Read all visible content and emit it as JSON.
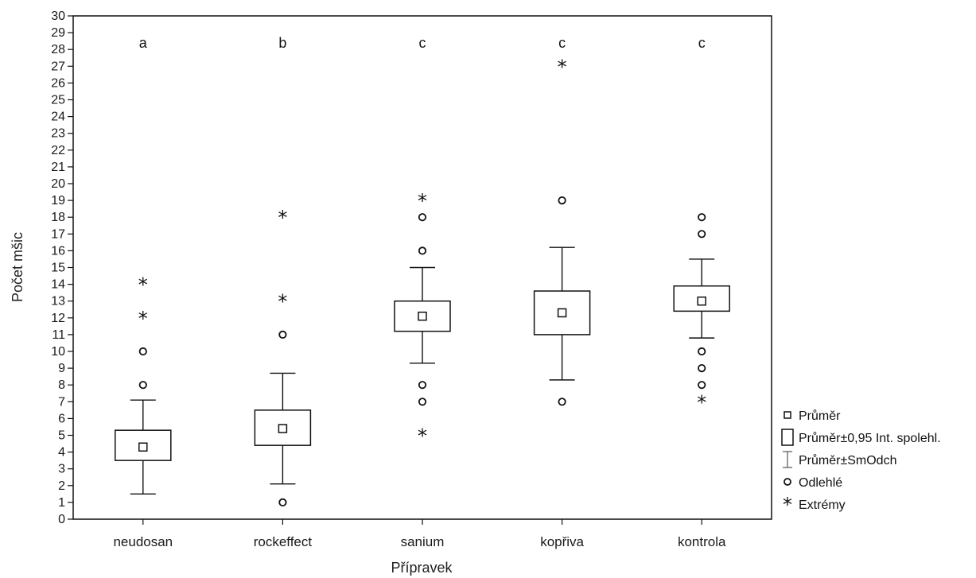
{
  "chart_data": {
    "type": "box",
    "title": "",
    "xlabel": "Přípravek",
    "ylabel": "Počet mšic",
    "ylim": [
      0,
      30
    ],
    "yticks": [
      0,
      1,
      2,
      3,
      4,
      5,
      6,
      7,
      8,
      9,
      10,
      11,
      12,
      13,
      14,
      15,
      16,
      17,
      18,
      19,
      20,
      21,
      22,
      23,
      24,
      25,
      26,
      27,
      28,
      29,
      30
    ],
    "grid": false,
    "legend_position": "right",
    "legend": [
      {
        "key": "mean",
        "label": "Průměr"
      },
      {
        "key": "ci",
        "label": "Průměr±0,95 Int. spolehl."
      },
      {
        "key": "sd",
        "label": "Průměr±SmOdch"
      },
      {
        "key": "outlier",
        "label": "Odlehlé"
      },
      {
        "key": "extreme",
        "label": "Extrémy"
      }
    ],
    "categories": [
      {
        "name": "neudosan",
        "group": "a",
        "mean": 4.3,
        "ci": [
          3.5,
          5.3
        ],
        "sd": [
          1.5,
          7.1
        ],
        "outliers": [
          8,
          10
        ],
        "extremes": [
          12,
          14
        ]
      },
      {
        "name": "rockeffect",
        "group": "b",
        "mean": 5.4,
        "ci": [
          4.4,
          6.5
        ],
        "sd": [
          2.1,
          8.7
        ],
        "outliers": [
          1,
          11
        ],
        "extremes": [
          13,
          18
        ]
      },
      {
        "name": "sanium",
        "group": "c",
        "mean": 12.1,
        "ci": [
          11.2,
          13.0
        ],
        "sd": [
          9.3,
          15.0
        ],
        "outliers": [
          7,
          8,
          16,
          18
        ],
        "extremes": [
          5,
          19
        ]
      },
      {
        "name": "kopřiva",
        "group": "c",
        "mean": 12.3,
        "ci": [
          11.0,
          13.6
        ],
        "sd": [
          8.3,
          16.2
        ],
        "outliers": [
          7,
          19
        ],
        "extremes": [
          27
        ]
      },
      {
        "name": "kontrola",
        "group": "c",
        "mean": 13.0,
        "ci": [
          12.4,
          13.9
        ],
        "sd": [
          10.8,
          15.5
        ],
        "outliers": [
          8,
          9,
          10,
          17,
          18
        ],
        "extremes": [
          7
        ]
      }
    ]
  }
}
